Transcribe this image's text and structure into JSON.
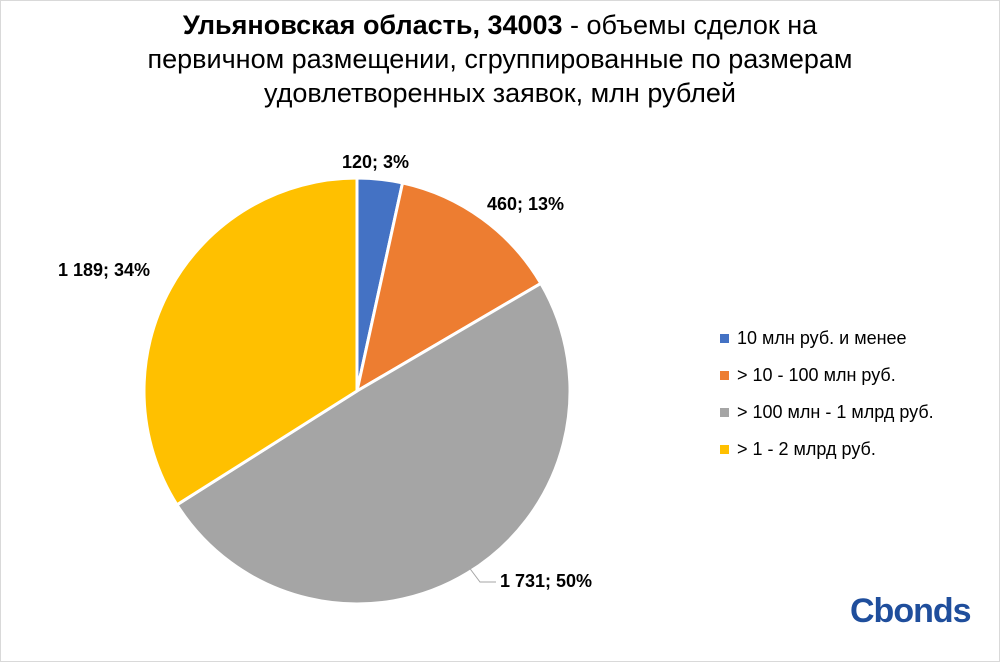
{
  "title": {
    "bold": "Ульяновская область, 34003",
    "rest": " - объемы сделок на первичном размещении, сгруппированные по размерам удовлетворенных заявок, млн рублей"
  },
  "chart_data": {
    "type": "pie",
    "title": "Ульяновская область, 34003 - объемы сделок на первичном размещении, сгруппированные по размерам удовлетворенных заявок, млн рублей",
    "categories": [
      "10 млн руб. и менее",
      "> 10 - 100 млн руб.",
      "> 100 млн - 1 млрд руб.",
      "> 1 - 2 млрд руб."
    ],
    "values": [
      120,
      460,
      1731,
      1189
    ],
    "percents": [
      3,
      13,
      50,
      34
    ],
    "data_labels": [
      "120; 3%",
      "460; 13%",
      "1 731; 50%",
      "1 189; 34%"
    ],
    "colors": [
      "#4472c4",
      "#ed7d31",
      "#a5a5a5",
      "#ffc000"
    ],
    "legend_position": "right"
  },
  "logo": "Cbonds"
}
